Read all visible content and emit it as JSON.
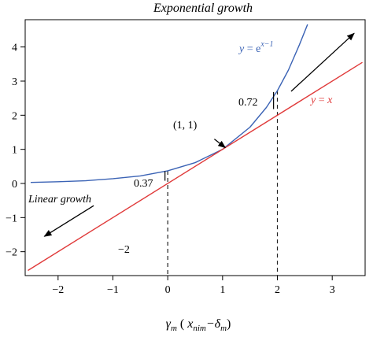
{
  "chart_data": {
    "type": "line",
    "title": "Exponential growth",
    "xlabel": "γm ( xnim−δm)",
    "xlabel_parts": {
      "main": "γ",
      "main_sub": "m",
      "open": " (",
      "x": "x",
      "x_sub": "nim",
      "minus": "−δ",
      "delta_sub": "m",
      "close": ")"
    },
    "ylabel": "",
    "xlim": [
      -2.6,
      3.6
    ],
    "ylim": [
      -2.7,
      4.8
    ],
    "x_ticks": [
      -2,
      -1,
      0,
      1,
      2,
      3
    ],
    "y_ticks": [
      -2,
      -1,
      0,
      1,
      2,
      3,
      4
    ],
    "grid": false,
    "series": [
      {
        "name": "y = e^(x−1)",
        "color": "#3b63b5",
        "x": [
          -2.5,
          -2.0,
          -1.5,
          -1.0,
          -0.5,
          0.0,
          0.5,
          1.0,
          1.5,
          1.8,
          2.0,
          2.2,
          2.4,
          2.55
        ],
        "y": [
          0.03,
          0.05,
          0.08,
          0.14,
          0.22,
          0.37,
          0.61,
          1.0,
          1.65,
          2.23,
          2.72,
          3.32,
          4.06,
          4.66
        ]
      },
      {
        "name": "y = x",
        "color": "#e03a3a",
        "x": [
          -2.55,
          3.55
        ],
        "y": [
          -2.55,
          3.55
        ]
      }
    ],
    "annotations": {
      "exp_label": {
        "y": "y",
        "eq": " = e",
        "sup": "x−1"
      },
      "lin_label": {
        "y": "y",
        "eq": " = ",
        "x": "x"
      },
      "point_label": "(1, 1)",
      "value_072": "0.72",
      "value_037": "0.37",
      "value_neg2": "−2",
      "linear_growth": "Linear growth"
    },
    "dashed_lines": [
      {
        "x": 0,
        "y_top": 0.37
      },
      {
        "x": 2,
        "y_top": 2.72
      }
    ],
    "arrows": [
      {
        "name": "upper-right",
        "from": [
          2.25,
          2.7
        ],
        "to": [
          3.4,
          4.4
        ]
      },
      {
        "name": "lower-left",
        "from": [
          -1.35,
          -0.65
        ],
        "to": [
          -2.25,
          -1.55
        ]
      },
      {
        "name": "to-point-1-1",
        "from": [
          0.85,
          1.3
        ],
        "to": [
          1.05,
          1.05
        ]
      }
    ],
    "tangent_ticks": [
      {
        "x": -0.05,
        "y_from": 0.08,
        "y_to": 0.36
      },
      {
        "x": 1.93,
        "y_from": 2.18,
        "y_to": 2.68
      }
    ]
  }
}
